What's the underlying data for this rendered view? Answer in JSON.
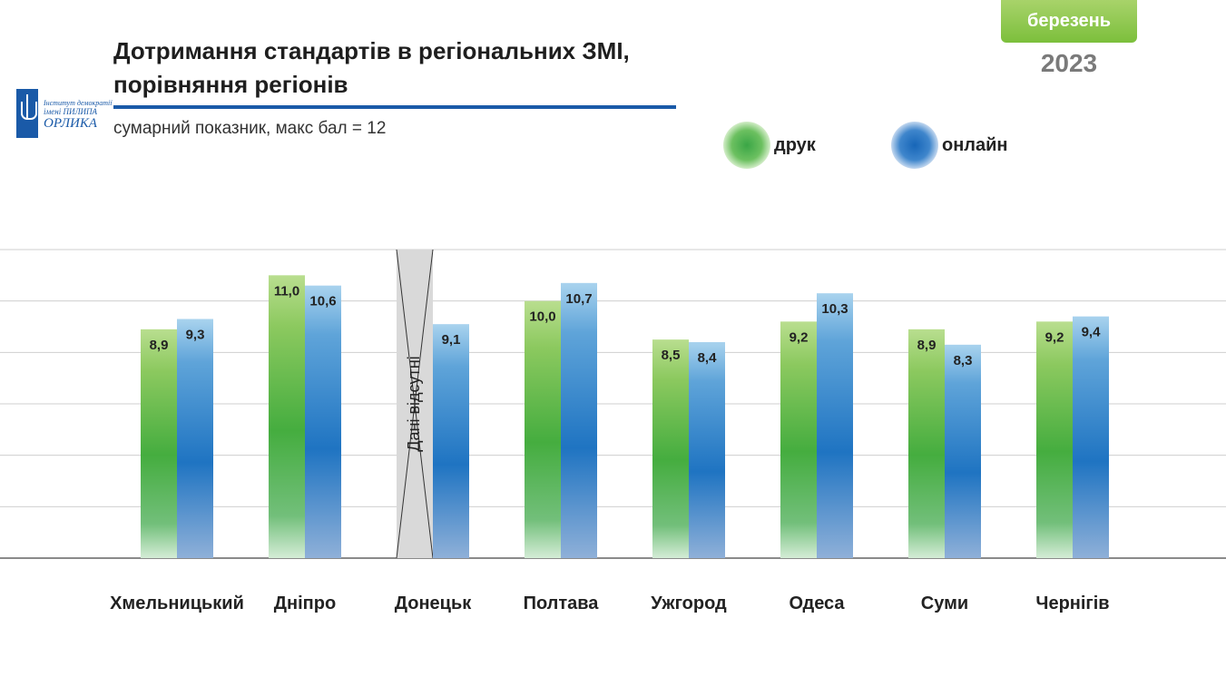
{
  "header": {
    "title_line1": "Дотримання стандартів в регіональних ЗМІ,",
    "title_line2": "порівняння регіонів",
    "subtitle": "сумарний показник, макс бал = 12",
    "month": "березень",
    "year": "2023"
  },
  "logo": {
    "line1": "Інститут демократії",
    "line2": "імені ПИЛИПА",
    "line3": "ОРЛИКА"
  },
  "colors": {
    "print": "#4aae45",
    "online": "#1f74c2",
    "title_rule": "#1a5aa8",
    "badge": "#8cc63f"
  },
  "chart_data": {
    "type": "bar",
    "categories": [
      "Хмельницький",
      "Дніпро",
      "Донецьк",
      "Полтава",
      "Ужгород",
      "Одеса",
      "Суми",
      "Чернігів"
    ],
    "series": [
      {
        "name": "друк",
        "values": [
          8.9,
          11.0,
          null,
          10.0,
          8.5,
          9.2,
          8.9,
          9.2
        ],
        "labels": [
          "8,9",
          "11,0",
          "",
          "10,0",
          "8,5",
          "9,2",
          "8,9",
          "9,2"
        ]
      },
      {
        "name": "онлайн",
        "values": [
          9.3,
          10.6,
          9.1,
          10.7,
          8.4,
          10.3,
          8.3,
          9.4
        ],
        "labels": [
          "9,3",
          "10,6",
          "9,1",
          "10,7",
          "8,4",
          "10,3",
          "8,3",
          "9,4"
        ]
      }
    ],
    "missing_note": "Дані відсутні",
    "ylim": [
      0,
      12
    ],
    "grid": true,
    "legend": "top-right"
  }
}
